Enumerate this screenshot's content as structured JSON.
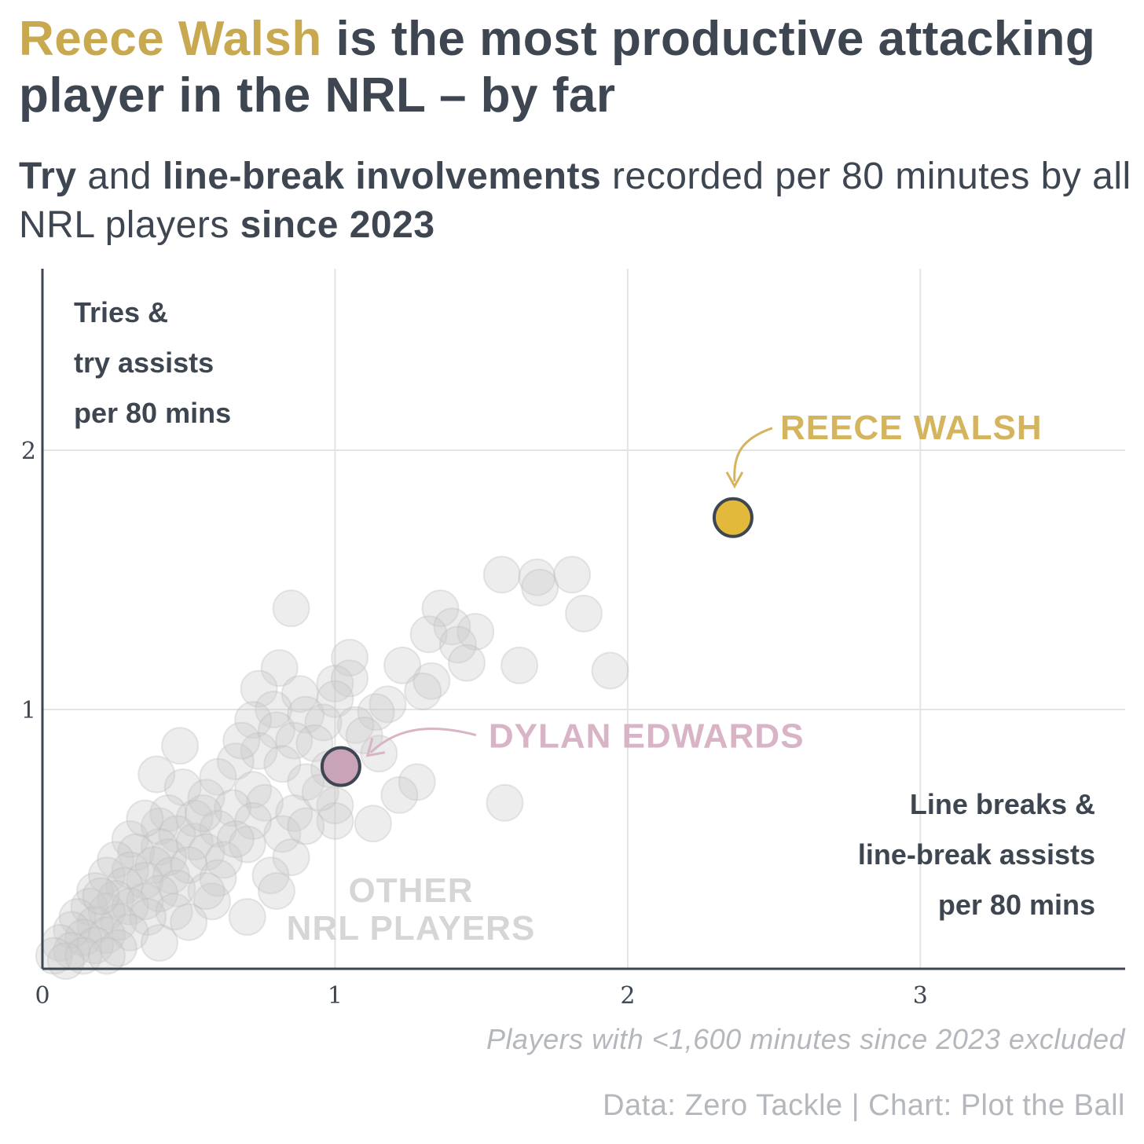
{
  "header": {
    "title_highlight": "Reece Walsh",
    "title_rest": " is the most productive attacking player in the NRL – by far",
    "subtitle_b1": "Try",
    "subtitle_t1": " and ",
    "subtitle_b2": "line-break involvements",
    "subtitle_t2": " recorded per 80 minutes by all NRL players ",
    "subtitle_b3": "since 2023"
  },
  "footer": {
    "note": "Players with <1,600 minutes since 2023 excluded",
    "source": "Data: Zero Tackle | Chart: Plot the Ball"
  },
  "colors": {
    "walsh": "#e2b93b",
    "walsh_label": "#d4b45c",
    "edwards": "#c9a3b8",
    "edwards_label": "#d8b4c6",
    "others": "#cccccc",
    "others_label": "#d6d6d6",
    "axis": "#3d4651",
    "grid": "#e4e4e4"
  },
  "chart_data": {
    "type": "scatter",
    "x_label_lines": [
      "Line breaks &",
      "line-break assists",
      "per 80 mins"
    ],
    "y_label_lines": [
      "Tries &",
      "try assists",
      "per 80 mins"
    ],
    "xlim": [
      0,
      3.7
    ],
    "ylim": [
      0,
      2.7
    ],
    "x_ticks": [
      0,
      1,
      2,
      3
    ],
    "y_ticks": [
      1,
      2
    ],
    "grid": true,
    "highlights": [
      {
        "name": "REECE WALSH",
        "x": 2.36,
        "y": 1.74,
        "color": "#e2b93b",
        "label_color": "#d4b45c"
      },
      {
        "name": "DYLAN EDWARDS",
        "x": 1.02,
        "y": 0.78,
        "color": "#c9a3b8",
        "label_color": "#d8b4c6"
      }
    ],
    "others_label_lines": [
      "OTHER",
      "NRL PLAYERS"
    ],
    "others": [
      [
        1.57,
        1.52
      ],
      [
        1.69,
        1.51
      ],
      [
        1.81,
        1.52
      ],
      [
        1.7,
        1.47
      ],
      [
        1.85,
        1.37
      ],
      [
        0.85,
        1.39
      ],
      [
        1.36,
        1.39
      ],
      [
        1.4,
        1.32
      ],
      [
        1.32,
        1.29
      ],
      [
        1.48,
        1.3
      ],
      [
        1.42,
        1.25
      ],
      [
        1.45,
        1.18
      ],
      [
        1.23,
        1.17
      ],
      [
        1.63,
        1.17
      ],
      [
        1.94,
        1.15
      ],
      [
        1.05,
        1.2
      ],
      [
        0.81,
        1.16
      ],
      [
        1.0,
        1.1
      ],
      [
        1.05,
        1.12
      ],
      [
        1.33,
        1.11
      ],
      [
        1.3,
        1.07
      ],
      [
        0.74,
        1.08
      ],
      [
        0.88,
        1.06
      ],
      [
        1.0,
        1.04
      ],
      [
        1.18,
        1.02
      ],
      [
        1.14,
        0.99
      ],
      [
        0.79,
        1.0
      ],
      [
        0.9,
        0.98
      ],
      [
        1.07,
        0.94
      ],
      [
        0.96,
        0.95
      ],
      [
        0.72,
        0.96
      ],
      [
        0.8,
        0.92
      ],
      [
        1.1,
        0.9
      ],
      [
        0.86,
        0.88
      ],
      [
        0.93,
        0.87
      ],
      [
        0.47,
        0.86
      ],
      [
        0.74,
        0.84
      ],
      [
        1.15,
        0.83
      ],
      [
        0.66,
        0.8
      ],
      [
        0.82,
        0.79
      ],
      [
        0.98,
        0.77
      ],
      [
        0.39,
        0.75
      ],
      [
        0.6,
        0.74
      ],
      [
        0.9,
        0.72
      ],
      [
        1.28,
        0.72
      ],
      [
        0.48,
        0.7
      ],
      [
        0.72,
        0.69
      ],
      [
        1.22,
        0.67
      ],
      [
        1.58,
        0.64
      ],
      [
        0.56,
        0.66
      ],
      [
        0.76,
        0.64
      ],
      [
        1.0,
        0.63
      ],
      [
        0.65,
        0.62
      ],
      [
        0.86,
        0.6
      ],
      [
        1.0,
        0.57
      ],
      [
        1.13,
        0.56
      ],
      [
        0.43,
        0.6
      ],
      [
        0.52,
        0.58
      ],
      [
        0.72,
        0.57
      ],
      [
        0.4,
        0.55
      ],
      [
        0.6,
        0.54
      ],
      [
        0.82,
        0.52
      ],
      [
        0.46,
        0.52
      ],
      [
        0.3,
        0.5
      ],
      [
        0.52,
        0.49
      ],
      [
        0.7,
        0.48
      ],
      [
        0.4,
        0.47
      ],
      [
        0.56,
        0.45
      ],
      [
        0.32,
        0.45
      ],
      [
        0.43,
        0.43
      ],
      [
        0.62,
        0.42
      ],
      [
        0.25,
        0.42
      ],
      [
        0.38,
        0.4
      ],
      [
        0.5,
        0.4
      ],
      [
        0.85,
        0.43
      ],
      [
        0.78,
        0.36
      ],
      [
        0.3,
        0.38
      ],
      [
        0.44,
        0.36
      ],
      [
        0.22,
        0.36
      ],
      [
        0.35,
        0.34
      ],
      [
        0.6,
        0.35
      ],
      [
        0.28,
        0.32
      ],
      [
        0.46,
        0.31
      ],
      [
        0.18,
        0.3
      ],
      [
        0.4,
        0.29
      ],
      [
        0.8,
        0.3
      ],
      [
        0.25,
        0.27
      ],
      [
        0.35,
        0.26
      ],
      [
        0.58,
        0.26
      ],
      [
        0.16,
        0.24
      ],
      [
        0.3,
        0.24
      ],
      [
        0.45,
        0.22
      ],
      [
        0.22,
        0.22
      ],
      [
        0.12,
        0.2
      ],
      [
        0.36,
        0.2
      ],
      [
        0.7,
        0.2
      ],
      [
        0.26,
        0.18
      ],
      [
        0.18,
        0.17
      ],
      [
        0.1,
        0.15
      ],
      [
        0.5,
        0.18
      ],
      [
        0.3,
        0.14
      ],
      [
        0.22,
        0.13
      ],
      [
        0.14,
        0.12
      ],
      [
        0.06,
        0.1
      ],
      [
        0.4,
        0.1
      ],
      [
        0.18,
        0.09
      ],
      [
        0.1,
        0.07
      ],
      [
        0.26,
        0.08
      ],
      [
        0.04,
        0.05
      ],
      [
        0.14,
        0.05
      ],
      [
        0.22,
        0.05
      ],
      [
        0.08,
        0.03
      ],
      [
        0.56,
        0.3
      ],
      [
        0.66,
        0.5
      ],
      [
        0.9,
        0.55
      ],
      [
        0.95,
        0.68
      ],
      [
        0.68,
        0.88
      ],
      [
        0.55,
        0.6
      ],
      [
        0.35,
        0.58
      ],
      [
        0.2,
        0.28
      ]
    ]
  }
}
